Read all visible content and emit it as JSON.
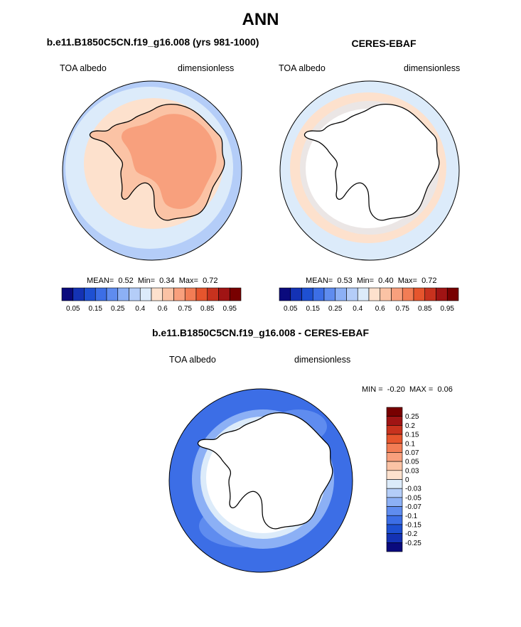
{
  "page_title": "ANN",
  "panels": [
    {
      "title": "b.e11.B1850C5CN.f19_g16.008 (yrs 981-1000)",
      "left_label": "TOA albedo",
      "right_label": "dimensionless",
      "stats": {
        "mean_label": "MEAN=",
        "mean": "0.52",
        "min_label": "Min=",
        "min": "0.34",
        "max_label": "Max=",
        "max": "0.72"
      }
    },
    {
      "title": "CERES-EBAF",
      "left_label": "TOA albedo",
      "right_label": "dimensionless",
      "stats": {
        "mean_label": "MEAN=",
        "mean": "0.53",
        "min_label": "Min=",
        "min": "0.40",
        "max_label": "Max=",
        "max": "0.72"
      }
    },
    {
      "title": "b.e11.B1850C5CN.f19_g16.008 - CERES-EBAF",
      "left_label": "TOA albedo",
      "right_label": "dimensionless",
      "stats": {
        "min_label": "MIN =",
        "min": "-0.20",
        "max_label": "MAX =",
        "max": "0.06"
      }
    }
  ],
  "colorbar_abs": {
    "colors": [
      "#0a0a7d",
      "#1432b4",
      "#1e50d2",
      "#3c6ee6",
      "#5f8cef",
      "#8cb0f5",
      "#b4cdf8",
      "#dcebfa",
      "#fde1cd",
      "#fbc3a5",
      "#f8a07d",
      "#f27d55",
      "#e6552d",
      "#c8321e",
      "#a01414",
      "#780000"
    ],
    "labels": [
      "0.05",
      "0.15",
      "0.25",
      "0.4",
      "0.6",
      "0.75",
      "0.85",
      "0.95"
    ]
  },
  "colorbar_diff": {
    "colors": [
      "#780000",
      "#a01414",
      "#c8321e",
      "#e6552d",
      "#f27d55",
      "#f8a07d",
      "#fbc3a5",
      "#fde1cd",
      "#dcebfa",
      "#b4cdf8",
      "#8cb0f5",
      "#5f8cef",
      "#3c6ee6",
      "#1e50d2",
      "#1432b4",
      "#0a0a7d"
    ],
    "labels": [
      "0.25",
      "0.2",
      "0.15",
      "0.1",
      "0.07",
      "0.05",
      "0.03",
      "0",
      "-0.03",
      "-0.05",
      "-0.07",
      "-0.1",
      "-0.15",
      "-0.2",
      "-0.25"
    ]
  },
  "chart_data": [
    {
      "type": "heatmap",
      "title": "b.e11.B1850C5CN.f19_g16.008 (yrs 981-1000)",
      "variable": "TOA albedo",
      "units": "dimensionless",
      "projection": "south polar stereographic",
      "levels": [
        0.05,
        0.1,
        0.15,
        0.2,
        0.25,
        0.3,
        0.4,
        0.5,
        0.6,
        0.7,
        0.75,
        0.8,
        0.85,
        0.9,
        0.95
      ],
      "mean": 0.52,
      "min": 0.34,
      "max": 0.72
    },
    {
      "type": "heatmap",
      "title": "CERES-EBAF",
      "variable": "TOA albedo",
      "units": "dimensionless",
      "projection": "south polar stereographic",
      "levels": [
        0.05,
        0.1,
        0.15,
        0.2,
        0.25,
        0.3,
        0.4,
        0.5,
        0.6,
        0.7,
        0.75,
        0.8,
        0.85,
        0.9,
        0.95
      ],
      "mean": 0.53,
      "min": 0.4,
      "max": 0.72
    },
    {
      "type": "heatmap",
      "title": "b.e11.B1850C5CN.f19_g16.008 - CERES-EBAF",
      "variable": "TOA albedo",
      "units": "dimensionless",
      "projection": "south polar stereographic",
      "levels": [
        0.25,
        0.2,
        0.15,
        0.1,
        0.07,
        0.05,
        0.03,
        0,
        -0.03,
        -0.05,
        -0.07,
        -0.1,
        -0.15,
        -0.2,
        -0.25
      ],
      "min": -0.2,
      "max": 0.06
    }
  ]
}
